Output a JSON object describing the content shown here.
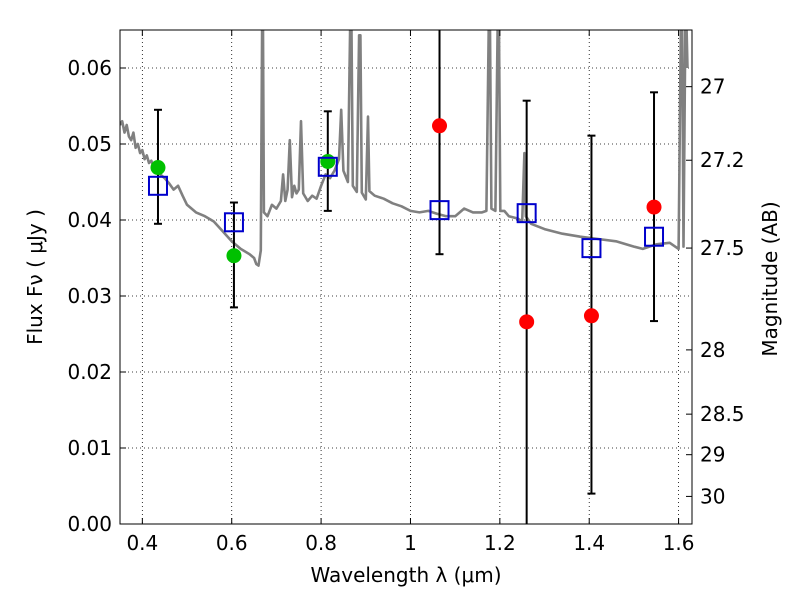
{
  "chart_data": {
    "type": "scatter",
    "xlabel": "Wavelength  λ (μm)",
    "ylabel_left": "Flux  Fν  ( μJy )",
    "ylabel_right": "Magnitude (AB)",
    "xlim": [
      0.35,
      1.63
    ],
    "ylim": [
      0.0,
      0.065
    ],
    "grid": true,
    "x_ticks": [
      {
        "value": 0.4,
        "label": "0.4"
      },
      {
        "value": 0.6,
        "label": "0.6"
      },
      {
        "value": 0.8,
        "label": "0.8"
      },
      {
        "value": 1.0,
        "label": "1"
      },
      {
        "value": 1.2,
        "label": "1.2"
      },
      {
        "value": 1.4,
        "label": "1.4"
      },
      {
        "value": 1.6,
        "label": "1.6"
      }
    ],
    "y_ticks": [
      {
        "value": 0.0,
        "label": "0.00"
      },
      {
        "value": 0.01,
        "label": "0.01"
      },
      {
        "value": 0.02,
        "label": "0.02"
      },
      {
        "value": 0.03,
        "label": "0.03"
      },
      {
        "value": 0.04,
        "label": "0.04"
      },
      {
        "value": 0.05,
        "label": "0.05"
      },
      {
        "value": 0.06,
        "label": "0.06"
      }
    ],
    "right_ticks": [
      {
        "value": 27,
        "label": "27"
      },
      {
        "value": 27.2,
        "label": "27.2"
      },
      {
        "value": 27.5,
        "label": "27.5"
      },
      {
        "value": 28,
        "label": "28"
      },
      {
        "value": 28.5,
        "label": "28.5"
      },
      {
        "value": 29,
        "label": "29"
      },
      {
        "value": 30,
        "label": "30"
      }
    ],
    "template_spectrum": {
      "color": "#808080",
      "points": [
        [
          0.35,
          0.0525
        ],
        [
          0.355,
          0.053
        ],
        [
          0.36,
          0.0515
        ],
        [
          0.365,
          0.0525
        ],
        [
          0.37,
          0.051
        ],
        [
          0.375,
          0.0505
        ],
        [
          0.38,
          0.0515
        ],
        [
          0.385,
          0.0495
        ],
        [
          0.39,
          0.05
        ],
        [
          0.395,
          0.0488
        ],
        [
          0.4,
          0.0492
        ],
        [
          0.405,
          0.048
        ],
        [
          0.41,
          0.0485
        ],
        [
          0.415,
          0.0475
        ],
        [
          0.42,
          0.0478
        ],
        [
          0.425,
          0.047
        ],
        [
          0.43,
          0.0475
        ],
        [
          0.435,
          0.0465
        ],
        [
          0.44,
          0.046
        ],
        [
          0.45,
          0.0455
        ],
        [
          0.46,
          0.0448
        ],
        [
          0.47,
          0.044
        ],
        [
          0.48,
          0.0445
        ],
        [
          0.49,
          0.0432
        ],
        [
          0.5,
          0.042
        ],
        [
          0.52,
          0.041
        ],
        [
          0.54,
          0.0405
        ],
        [
          0.56,
          0.0398
        ],
        [
          0.58,
          0.0385
        ],
        [
          0.6,
          0.0372
        ],
        [
          0.62,
          0.0362
        ],
        [
          0.64,
          0.0355
        ],
        [
          0.65,
          0.035
        ],
        [
          0.655,
          0.0342
        ],
        [
          0.66,
          0.034
        ],
        [
          0.665,
          0.036
        ],
        [
          0.668,
          0.065
        ],
        [
          0.67,
          0.065
        ],
        [
          0.672,
          0.041
        ],
        [
          0.68,
          0.0405
        ],
        [
          0.69,
          0.042
        ],
        [
          0.7,
          0.0415
        ],
        [
          0.71,
          0.0425
        ],
        [
          0.715,
          0.046
        ],
        [
          0.72,
          0.0425
        ],
        [
          0.725,
          0.044
        ],
        [
          0.73,
          0.0505
        ],
        [
          0.735,
          0.043
        ],
        [
          0.74,
          0.0445
        ],
        [
          0.745,
          0.0435
        ],
        [
          0.75,
          0.044
        ],
        [
          0.755,
          0.053
        ],
        [
          0.76,
          0.0435
        ],
        [
          0.77,
          0.0425
        ],
        [
          0.78,
          0.0432
        ],
        [
          0.79,
          0.0428
        ],
        [
          0.8,
          0.0445
        ],
        [
          0.81,
          0.046
        ],
        [
          0.82,
          0.0455
        ],
        [
          0.83,
          0.0465
        ],
        [
          0.84,
          0.048
        ],
        [
          0.845,
          0.0545
        ],
        [
          0.85,
          0.0465
        ],
        [
          0.86,
          0.045
        ],
        [
          0.865,
          0.065
        ],
        [
          0.868,
          0.065
        ],
        [
          0.871,
          0.0445
        ],
        [
          0.88,
          0.0437
        ],
        [
          0.885,
          0.0643
        ],
        [
          0.888,
          0.0643
        ],
        [
          0.891,
          0.0436
        ],
        [
          0.9,
          0.0427
        ],
        [
          0.905,
          0.0536
        ],
        [
          0.908,
          0.0438
        ],
        [
          0.92,
          0.0432
        ],
        [
          0.94,
          0.0428
        ],
        [
          0.96,
          0.0422
        ],
        [
          0.98,
          0.0418
        ],
        [
          1.0,
          0.0412
        ],
        [
          1.02,
          0.041
        ],
        [
          1.04,
          0.0412
        ],
        [
          1.06,
          0.0408
        ],
        [
          1.08,
          0.0405
        ],
        [
          1.1,
          0.0405
        ],
        [
          1.12,
          0.0415
        ],
        [
          1.14,
          0.041
        ],
        [
          1.16,
          0.041
        ],
        [
          1.17,
          0.0412
        ],
        [
          1.175,
          0.065
        ],
        [
          1.178,
          0.065
        ],
        [
          1.181,
          0.0415
        ],
        [
          1.19,
          0.0412
        ],
        [
          1.195,
          0.065
        ],
        [
          1.198,
          0.065
        ],
        [
          1.201,
          0.0412
        ],
        [
          1.21,
          0.0412
        ],
        [
          1.22,
          0.0405
        ],
        [
          1.24,
          0.0402
        ],
        [
          1.25,
          0.0398
        ],
        [
          1.255,
          0.0488
        ],
        [
          1.258,
          0.0405
        ],
        [
          1.27,
          0.0395
        ],
        [
          1.3,
          0.0388
        ],
        [
          1.34,
          0.0382
        ],
        [
          1.38,
          0.0378
        ],
        [
          1.42,
          0.0375
        ],
        [
          1.46,
          0.0372
        ],
        [
          1.5,
          0.0365
        ],
        [
          1.52,
          0.0362
        ],
        [
          1.55,
          0.0368
        ],
        [
          1.58,
          0.037
        ],
        [
          1.6,
          0.0362
        ],
        [
          1.605,
          0.065
        ],
        [
          1.608,
          0.065
        ],
        [
          1.611,
          0.0365
        ],
        [
          1.615,
          0.065
        ],
        [
          1.618,
          0.065
        ],
        [
          1.62,
          0.06
        ]
      ]
    },
    "series": [
      {
        "marker": "filled-circle",
        "color": "#00c000",
        "x": [
          0.435,
          0.605,
          0.815
        ],
        "y": [
          0.0469,
          0.0353,
          0.0477
        ]
      },
      {
        "marker": "filled-circle",
        "color": "#ff0000",
        "x": [
          1.065,
          1.26,
          1.405,
          1.545
        ],
        "y": [
          0.0524,
          0.0266,
          0.0274,
          0.0417
        ]
      },
      {
        "marker": "open-square",
        "color": "#0000cc",
        "x": [
          0.435,
          0.605,
          0.815,
          1.065,
          1.26,
          1.405,
          1.545
        ],
        "y": [
          0.0445,
          0.0397,
          0.047,
          0.0413,
          0.0409,
          0.0363,
          0.0378
        ]
      }
    ],
    "error_bars": {
      "color": "#000000",
      "x": [
        0.435,
        0.605,
        0.815,
        1.065,
        1.26,
        1.405,
        1.545
      ],
      "low": [
        0.0395,
        0.0285,
        0.0412,
        0.0355,
        0.0,
        0.004,
        0.0267
      ],
      "high": [
        0.0545,
        0.0423,
        0.0543,
        0.065,
        0.0557,
        0.0511,
        0.0568
      ]
    }
  }
}
